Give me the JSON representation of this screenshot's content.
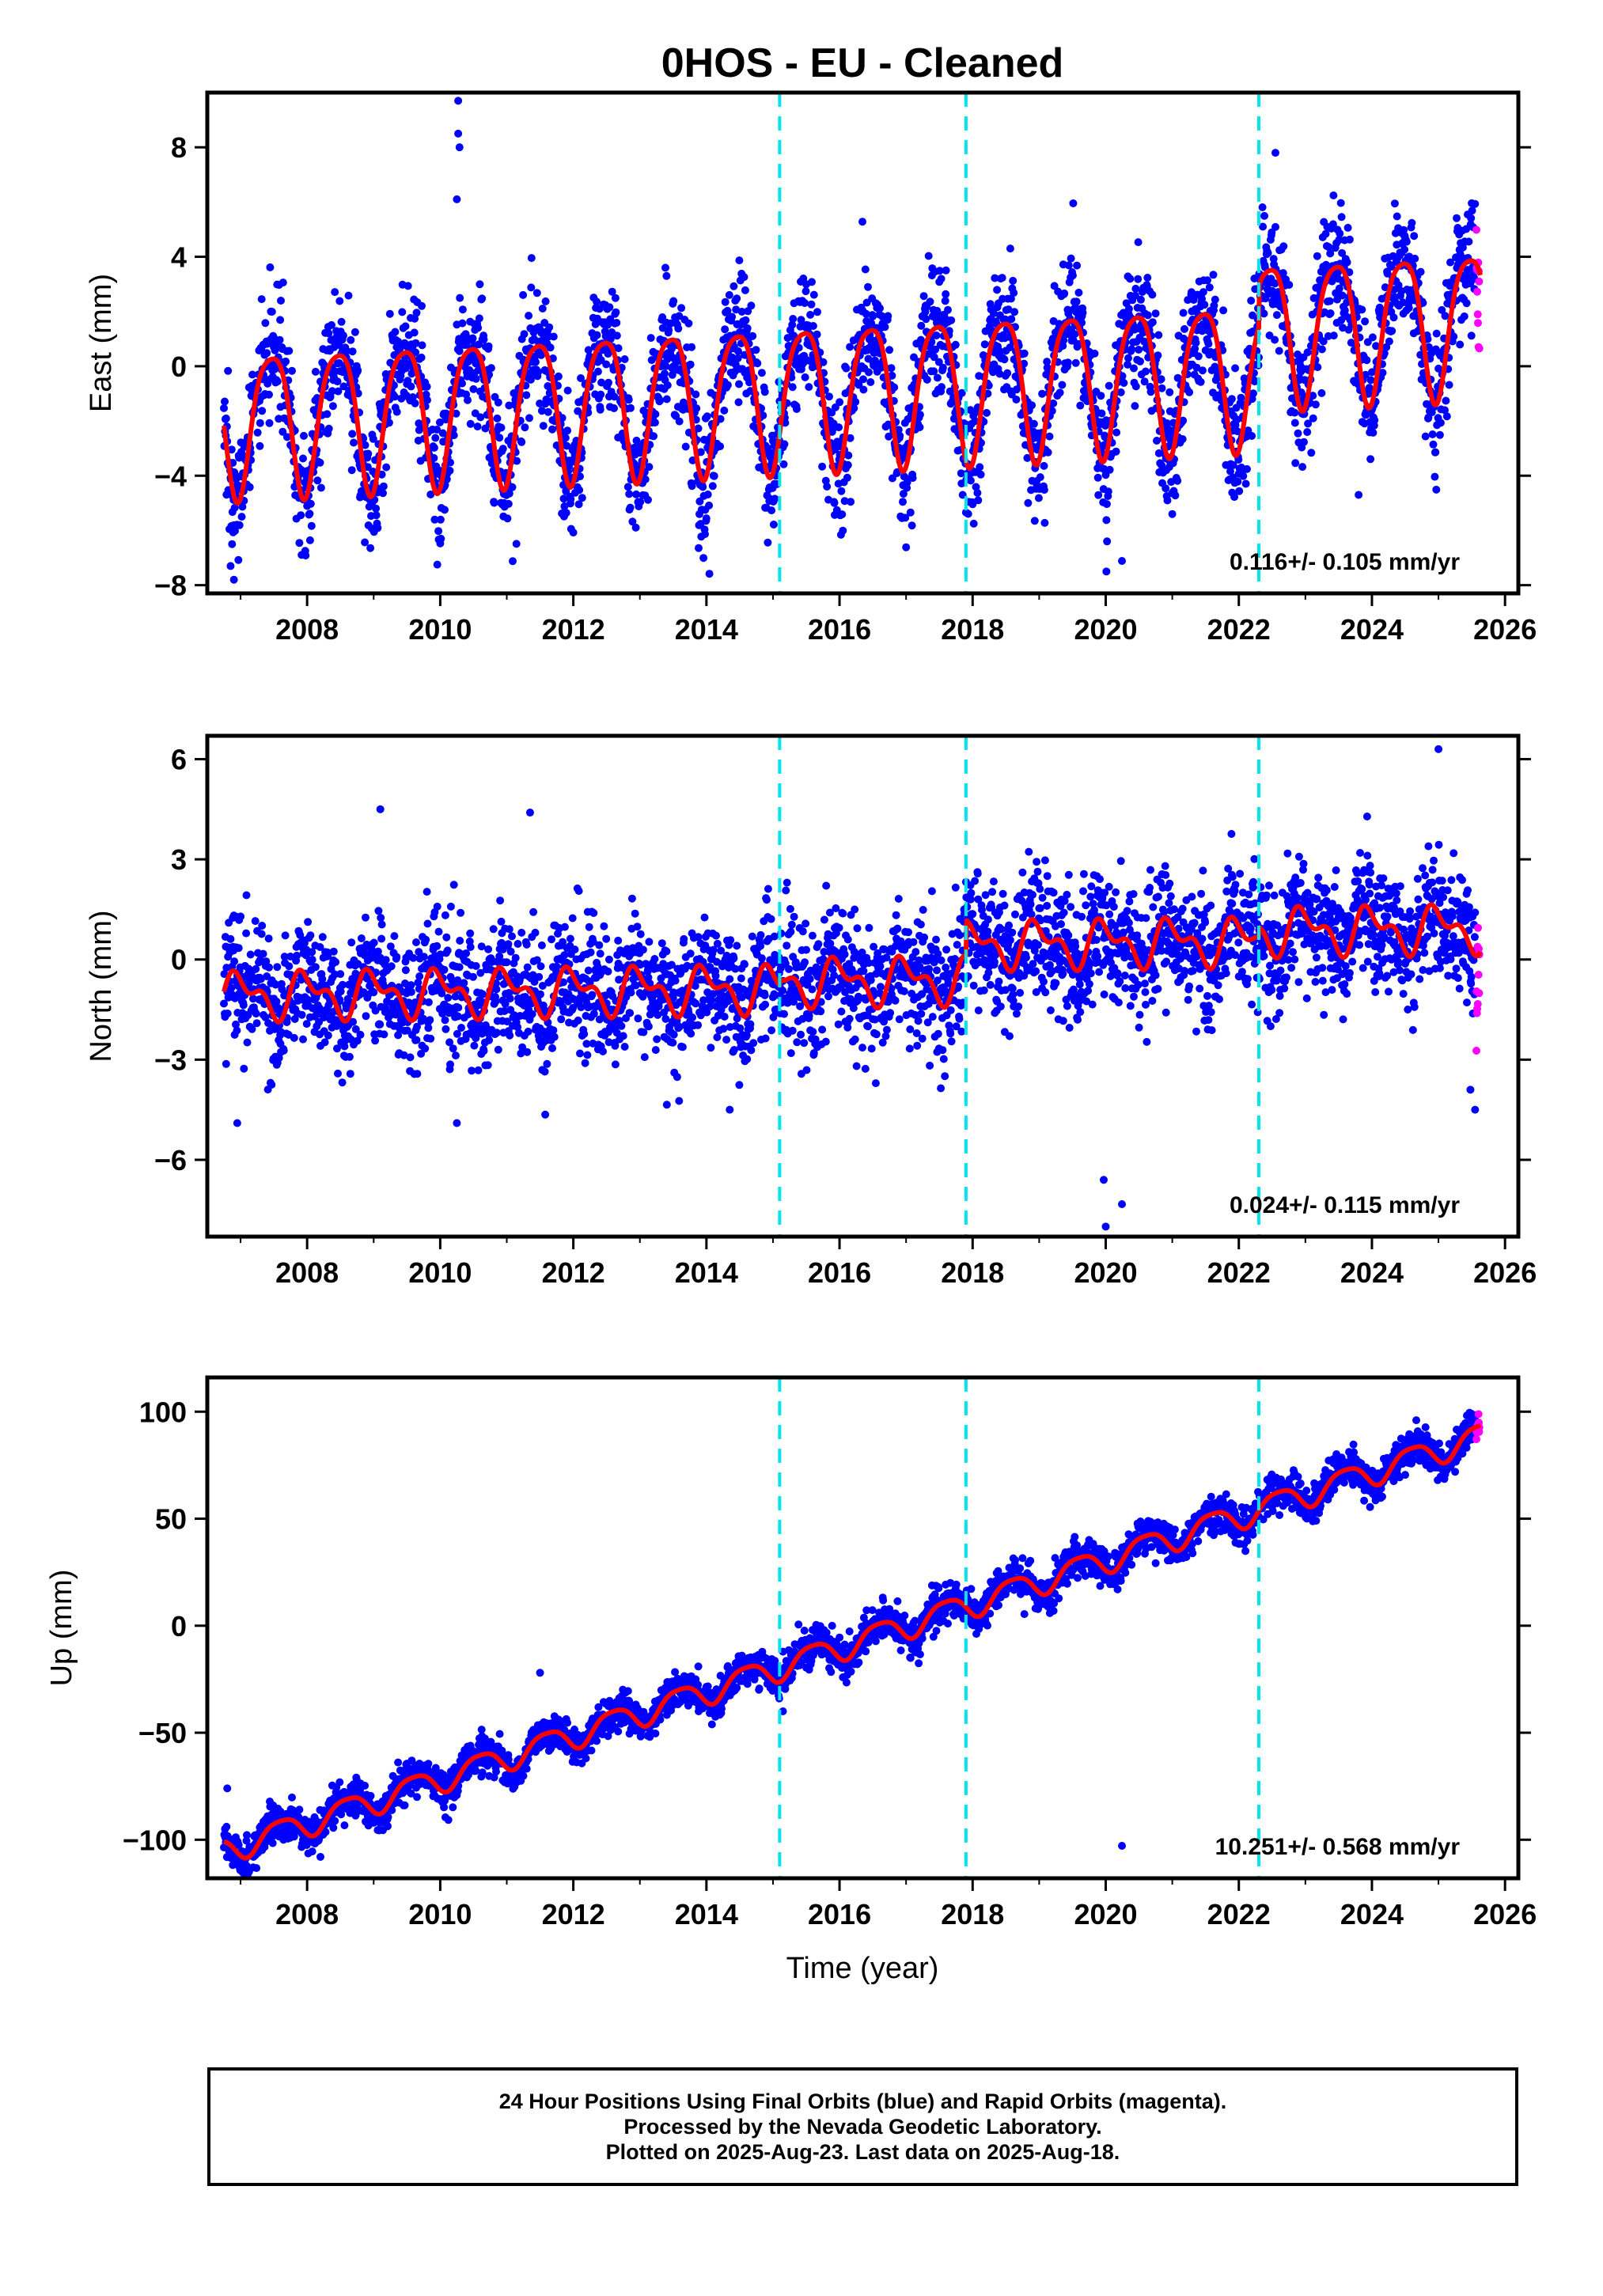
{
  "figure": {
    "title": "0HOS  - EU - Cleaned",
    "xlabel": "Time (year)"
  },
  "colors": {
    "final_orbits": "#0000ff",
    "rapid_orbits": "#ff00ff",
    "model_fit": "#ff0000",
    "equipment_change": "#00e5ee"
  },
  "chart_data": [
    {
      "type": "scatter",
      "panel": "east",
      "ylabel": "East (mm)",
      "rate_text": "0.116+/- 0.105 mm/yr",
      "xlim": [
        2006.5,
        2026.2
      ],
      "ylim": [
        -8.3,
        10
      ],
      "xticks": [
        2008,
        2010,
        2012,
        2014,
        2016,
        2018,
        2020,
        2022,
        2024,
        2026
      ],
      "yticks": [
        -8,
        -4,
        0,
        4,
        8
      ],
      "equipment_change_years": [
        2015.1,
        2017.9,
        2022.3
      ],
      "data_start": 2006.75,
      "data_end": 2025.63,
      "rapid_start": 2025.55,
      "model": {
        "offset": -0.86,
        "trend": 0.116,
        "annual_amp": 2.6,
        "annual_phase_year": 2007.46,
        "semiannual_amp": 0.5,
        "semiannual_phase_year": 2007.2,
        "steps": [
          {
            "year": 2022.3,
            "size": 1.5
          }
        ]
      },
      "noise_sd": 1.15,
      "outliers": [
        {
          "x": 2010.27,
          "y": 9.7
        },
        {
          "x": 2010.27,
          "y": 8.5
        },
        {
          "x": 2010.29,
          "y": 8.0
        },
        {
          "x": 2010.25,
          "y": 6.1
        },
        {
          "x": 2022.55,
          "y": 7.8
        },
        {
          "x": 2023.8,
          "y": -4.7
        },
        {
          "x": 2020.01,
          "y": -7.5
        },
        {
          "x": 2020.02,
          "y": -6.4
        },
        {
          "x": 2006.9,
          "y": -7.8
        },
        {
          "x": 2006.85,
          "y": -7.3
        }
      ]
    },
    {
      "type": "scatter",
      "panel": "north",
      "ylabel": "North (mm)",
      "rate_text": "0.024+/- 0.115 mm/yr",
      "xlim": [
        2006.5,
        2026.2
      ],
      "ylim": [
        -8.3,
        6.7
      ],
      "xticks": [
        2008,
        2010,
        2012,
        2014,
        2016,
        2018,
        2020,
        2022,
        2024,
        2026
      ],
      "yticks": [
        -6,
        -3,
        0,
        3,
        6
      ],
      "equipment_change_years": [
        2015.1,
        2017.9,
        2022.3
      ],
      "data_start": 2006.75,
      "data_end": 2025.63,
      "rapid_start": 2025.55,
      "model": {
        "offset": -0.85,
        "trend": 0.024,
        "annual_amp": 0.55,
        "annual_phase_year": 2007.0,
        "semiannual_amp": 0.35,
        "semiannual_phase_year": 2006.85,
        "steps": [
          {
            "year": 2015.1,
            "size": 0.2
          },
          {
            "year": 2017.9,
            "size": 1.05
          },
          {
            "year": 2022.3,
            "size": 0.3
          }
        ]
      },
      "noise_sd": 0.95,
      "outliers": [
        {
          "x": 2020.0,
          "y": -8.0
        },
        {
          "x": 2019.97,
          "y": -6.6
        },
        {
          "x": 2025.0,
          "y": 6.3
        },
        {
          "x": 2011.35,
          "y": 4.4
        },
        {
          "x": 2009.1,
          "y": 4.5
        },
        {
          "x": 2025.48,
          "y": -3.9
        },
        {
          "x": 2025.55,
          "y": -4.5
        },
        {
          "x": 2006.95,
          "y": -4.9
        },
        {
          "x": 2010.25,
          "y": -4.9
        },
        {
          "x": 2014.35,
          "y": -4.5
        }
      ]
    },
    {
      "type": "scatter",
      "panel": "up",
      "ylabel": "Up (mm)",
      "rate_text": "10.251+/- 0.568 mm/yr",
      "xlim": [
        2006.5,
        2026.2
      ],
      "ylim": [
        -118,
        116
      ],
      "xticks": [
        2008,
        2010,
        2012,
        2014,
        2016,
        2018,
        2020,
        2022,
        2024,
        2026
      ],
      "yticks": [
        -100,
        -50,
        0,
        50,
        100
      ],
      "equipment_change_years": [
        2015.1,
        2017.9,
        2022.3
      ],
      "data_start": 2006.75,
      "data_end": 2025.63,
      "rapid_start": 2025.55,
      "model": {
        "offset": -10.0,
        "trend": 10.251,
        "annual_amp": 6.0,
        "annual_phase_year": 2007.6,
        "semiannual_amp": 1.2,
        "semiannual_phase_year": 2007.35,
        "steps": []
      },
      "noise_sd": 4.2,
      "outliers": [
        {
          "x": 2006.8,
          "y": -76
        },
        {
          "x": 2015.15,
          "y": -40
        },
        {
          "x": 2011.5,
          "y": -22
        },
        {
          "x": 2008.2,
          "y": -108
        }
      ]
    }
  ],
  "caption": {
    "line1": "24 Hour Positions Using Final Orbits (blue) and Rapid Orbits (magenta).",
    "line2": "Processed by the Nevada Geodetic Laboratory.",
    "line3": "Plotted on 2025-Aug-23. Last data on 2025-Aug-18."
  }
}
